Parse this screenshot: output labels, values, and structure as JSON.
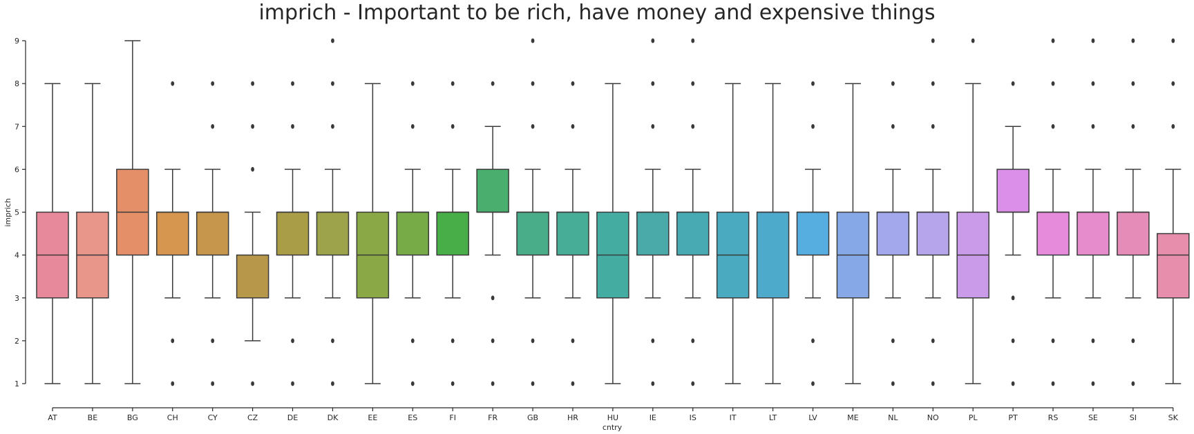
{
  "chart_data": {
    "type": "box",
    "title": "imprich - Important to be rich, have money and expensive things",
    "xlabel": "cntry",
    "ylabel": "imprich",
    "ylim": [
      1,
      9
    ],
    "yticks": [
      1,
      2,
      3,
      4,
      5,
      6,
      7,
      8,
      9
    ],
    "grid": false,
    "boxes": [
      {
        "category": "AT",
        "color": "#e8899b",
        "q1": 3,
        "median": 4,
        "q3": 5,
        "whisker_low": 1,
        "whisker_high": 8,
        "outliers": []
      },
      {
        "category": "BE",
        "color": "#e8968a",
        "q1": 3,
        "median": 4,
        "q3": 5,
        "whisker_low": 1,
        "whisker_high": 8,
        "outliers": []
      },
      {
        "category": "BG",
        "color": "#e48f68",
        "q1": 4,
        "median": 5,
        "q3": 6,
        "whisker_low": 1,
        "whisker_high": 9,
        "outliers": []
      },
      {
        "category": "CH",
        "color": "#d79650",
        "q1": 4,
        "median": 5,
        "q3": 5,
        "whisker_low": 3,
        "whisker_high": 6,
        "outliers": [
          1,
          2,
          8
        ]
      },
      {
        "category": "CY",
        "color": "#c6964c",
        "q1": 4,
        "median": 5,
        "q3": 5,
        "whisker_low": 3,
        "whisker_high": 6,
        "outliers": [
          1,
          2,
          7,
          8
        ]
      },
      {
        "category": "CZ",
        "color": "#b7984a",
        "q1": 3,
        "median": 3,
        "q3": 4,
        "whisker_low": 2,
        "whisker_high": 5,
        "outliers": [
          1,
          6,
          7,
          8
        ]
      },
      {
        "category": "DE",
        "color": "#a99d48",
        "q1": 4,
        "median": 5,
        "q3": 5,
        "whisker_low": 3,
        "whisker_high": 6,
        "outliers": [
          1,
          2,
          7,
          8
        ]
      },
      {
        "category": "DK",
        "color": "#9da34a",
        "q1": 4,
        "median": 5,
        "q3": 5,
        "whisker_low": 3,
        "whisker_high": 6,
        "outliers": [
          1,
          2,
          7,
          8,
          9
        ]
      },
      {
        "category": "EE",
        "color": "#8aa845",
        "q1": 3,
        "median": 4,
        "q3": 5,
        "whisker_low": 1,
        "whisker_high": 8,
        "outliers": []
      },
      {
        "category": "ES",
        "color": "#77ab48",
        "q1": 4,
        "median": 5,
        "q3": 5,
        "whisker_low": 3,
        "whisker_high": 6,
        "outliers": [
          1,
          2,
          7,
          8
        ]
      },
      {
        "category": "FI",
        "color": "#48af48",
        "q1": 4,
        "median": 5,
        "q3": 5,
        "whisker_low": 3,
        "whisker_high": 6,
        "outliers": [
          1,
          2,
          7,
          8
        ]
      },
      {
        "category": "FR",
        "color": "#4aae6e",
        "q1": 5,
        "median": 5,
        "q3": 6,
        "whisker_low": 4,
        "whisker_high": 7,
        "outliers": [
          1,
          2,
          3,
          8
        ]
      },
      {
        "category": "GB",
        "color": "#48ad88",
        "q1": 4,
        "median": 5,
        "q3": 5,
        "whisker_low": 3,
        "whisker_high": 6,
        "outliers": [
          1,
          2,
          7,
          8,
          9
        ]
      },
      {
        "category": "HR",
        "color": "#48ad96",
        "q1": 4,
        "median": 5,
        "q3": 5,
        "whisker_low": 3,
        "whisker_high": 6,
        "outliers": [
          1,
          2,
          7,
          8
        ]
      },
      {
        "category": "HU",
        "color": "#45aca2",
        "q1": 3,
        "median": 4,
        "q3": 5,
        "whisker_low": 1,
        "whisker_high": 8,
        "outliers": []
      },
      {
        "category": "IE",
        "color": "#4aaaaa",
        "q1": 4,
        "median": 5,
        "q3": 5,
        "whisker_low": 3,
        "whisker_high": 6,
        "outliers": [
          1,
          2,
          7,
          8,
          9
        ]
      },
      {
        "category": "IS",
        "color": "#48abb4",
        "q1": 4,
        "median": 5,
        "q3": 5,
        "whisker_low": 3,
        "whisker_high": 6,
        "outliers": [
          1,
          2,
          7,
          8,
          9
        ]
      },
      {
        "category": "IT",
        "color": "#4aaabf",
        "q1": 3,
        "median": 4,
        "q3": 5,
        "whisker_low": 1,
        "whisker_high": 8,
        "outliers": []
      },
      {
        "category": "LT",
        "color": "#4eaacb",
        "q1": 3,
        "median": 5,
        "q3": 5,
        "whisker_low": 1,
        "whisker_high": 8,
        "outliers": []
      },
      {
        "category": "LV",
        "color": "#56ade0",
        "q1": 4,
        "median": 5,
        "q3": 5,
        "whisker_low": 3,
        "whisker_high": 6,
        "outliers": [
          1,
          2,
          7,
          8
        ]
      },
      {
        "category": "ME",
        "color": "#86a8e6",
        "q1": 3,
        "median": 4,
        "q3": 5,
        "whisker_low": 1,
        "whisker_high": 8,
        "outliers": []
      },
      {
        "category": "NL",
        "color": "#a3a8ec",
        "q1": 4,
        "median": 5,
        "q3": 5,
        "whisker_low": 3,
        "whisker_high": 6,
        "outliers": [
          1,
          2,
          7,
          8
        ]
      },
      {
        "category": "NO",
        "color": "#b7a5eb",
        "q1": 4,
        "median": 5,
        "q3": 5,
        "whisker_low": 3,
        "whisker_high": 6,
        "outliers": [
          1,
          2,
          7,
          8,
          9
        ]
      },
      {
        "category": "PL",
        "color": "#c99be8",
        "q1": 3,
        "median": 4,
        "q3": 5,
        "whisker_low": 1,
        "whisker_high": 8,
        "outliers": [
          9
        ]
      },
      {
        "category": "PT",
        "color": "#dc8fe8",
        "q1": 5,
        "median": 5,
        "q3": 6,
        "whisker_low": 4,
        "whisker_high": 7,
        "outliers": [
          1,
          2,
          3,
          8
        ]
      },
      {
        "category": "RS",
        "color": "#e68bdc",
        "q1": 4,
        "median": 5,
        "q3": 5,
        "whisker_low": 3,
        "whisker_high": 6,
        "outliers": [
          1,
          2,
          7,
          8,
          9
        ]
      },
      {
        "category": "SE",
        "color": "#e68ccc",
        "q1": 4,
        "median": 5,
        "q3": 5,
        "whisker_low": 3,
        "whisker_high": 6,
        "outliers": [
          1,
          2,
          7,
          8,
          9
        ]
      },
      {
        "category": "SI",
        "color": "#e68cb8",
        "q1": 4,
        "median": 5,
        "q3": 5,
        "whisker_low": 3,
        "whisker_high": 6,
        "outliers": [
          1,
          2,
          7,
          8,
          9
        ]
      },
      {
        "category": "SK",
        "color": "#e68eac",
        "q1": 3,
        "median": 4,
        "q3": 4.5,
        "whisker_low": 1,
        "whisker_high": 6,
        "outliers": [
          7,
          8,
          9
        ]
      }
    ]
  }
}
